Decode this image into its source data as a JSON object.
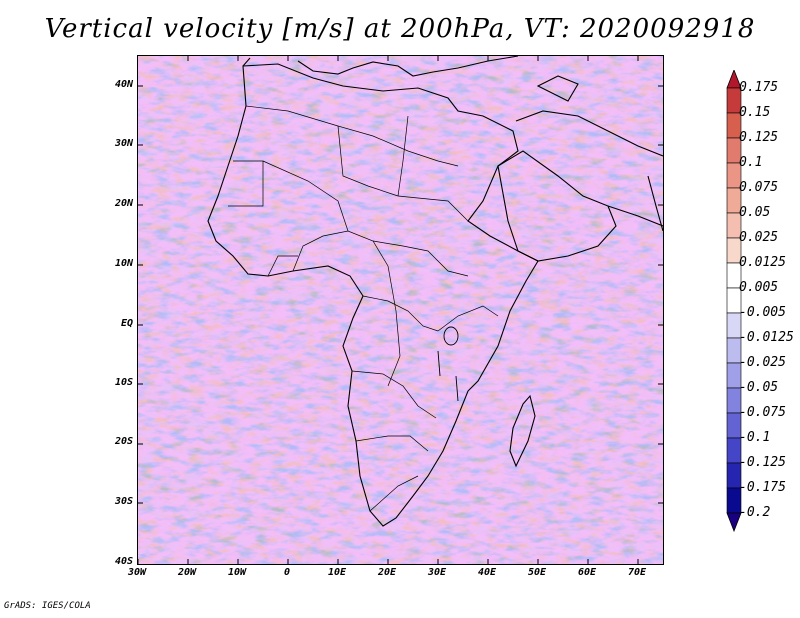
{
  "title": "Vertical velocity [m/s] at 200hPa, VT: 2020092918",
  "footer": "GrADS: IGES/COLA",
  "map": {
    "region": "Africa",
    "lon_range": [
      -30,
      76
    ],
    "lat_range": [
      -40,
      45
    ],
    "lat_ticks": [
      "40N",
      "30N",
      "20N",
      "10N",
      "EQ",
      "10S",
      "20S",
      "30S",
      "40S"
    ],
    "lon_ticks": [
      "30W",
      "20W",
      "10W",
      "0",
      "10E",
      "20E",
      "30E",
      "40E",
      "50E",
      "60E",
      "70E"
    ]
  },
  "colorbar": {
    "labels": [
      "0.175",
      "0.15",
      "0.125",
      "0.1",
      "0.075",
      "0.05",
      "0.025",
      "0.0125",
      "0.005",
      "-0.005",
      "-0.0125",
      "-0.025",
      "-0.05",
      "-0.075",
      "-0.1",
      "-0.125",
      "-0.175",
      "-0.2"
    ],
    "colors": [
      "#b2182b",
      "#c53a3a",
      "#d6604d",
      "#e07b6d",
      "#ea9585",
      "#f0aa98",
      "#f4bfb0",
      "#f9d8cc",
      "#ffffff",
      "#ffffff",
      "#d8d8f6",
      "#bcbcef",
      "#a0a0e8",
      "#8282df",
      "#6363d4",
      "#4545c8",
      "#2525b0",
      "#0a0a90",
      "#1a0080"
    ]
  }
}
